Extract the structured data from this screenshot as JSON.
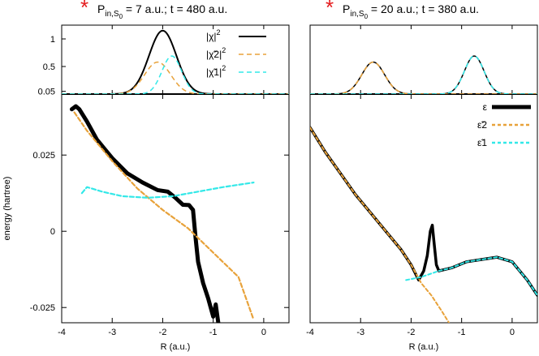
{
  "chart_data": {
    "type": "line",
    "ylabel": "energy (hartree)",
    "panels": [
      {
        "id": "left",
        "title": {
          "star": "*",
          "text": "P",
          "sub": "in,S",
          "subsub": "0",
          "rest": " = 7 a.u.; t = 480 a.u."
        },
        "xlabel": "R (a.u.)",
        "xlim": [
          -4,
          0.5
        ],
        "xticks": [
          "-4",
          "-3",
          "-2",
          "-1",
          "0"
        ],
        "top": {
          "ylim": [
            0,
            1.25
          ],
          "yticks": [
            "0.05",
            "0.5",
            "1"
          ],
          "legend": [
            "|χ|",
            "|χ̃2|",
            "|χ̃1|"
          ],
          "series": [
            {
              "color": "#000000",
              "dash": "",
              "width": 2,
              "gaussians": [
                [
                  1.15,
                  -2.0,
                  0.42
                ]
              ]
            },
            {
              "color": "#e8a23a",
              "dash": "6,4",
              "width": 1.5,
              "gaussians": [
                [
                  0.58,
                  -2.1,
                  0.4
                ]
              ]
            },
            {
              "color": "#33e8e8",
              "dash": "6,4",
              "width": 1.5,
              "gaussians": [
                [
                  0.69,
                  -1.82,
                  0.3
                ]
              ]
            }
          ]
        },
        "bottom": {
          "ylim": [
            -0.03,
            0.045
          ],
          "yticks": [
            "0.025",
            "0",
            "-0.025"
          ],
          "ytick_values": [
            0.025,
            0,
            -0.025
          ],
          "legend": [
            "ε",
            "ε̃2",
            "ε̃1"
          ],
          "series": [
            {
              "name_ref": 0,
              "color": "#000000",
              "dash": "",
              "width": 5,
              "points": [
                [
                  -3.8,
                  0.04
                ],
                [
                  -3.72,
                  0.041
                ],
                [
                  -3.65,
                  0.04
                ],
                [
                  -3.5,
                  0.036
                ],
                [
                  -3.3,
                  0.03
                ],
                [
                  -3.0,
                  0.024
                ],
                [
                  -2.7,
                  0.019
                ],
                [
                  -2.4,
                  0.016
                ],
                [
                  -2.1,
                  0.0135
                ],
                [
                  -1.9,
                  0.013
                ],
                [
                  -1.75,
                  0.011
                ],
                [
                  -1.6,
                  0.0087
                ],
                [
                  -1.48,
                  0.0086
                ],
                [
                  -1.4,
                  0.007
                ],
                [
                  -1.35,
                  -0.002
                ],
                [
                  -1.3,
                  -0.01
                ],
                [
                  -1.2,
                  -0.017
                ],
                [
                  -1.1,
                  -0.022
                ],
                [
                  -1.0,
                  -0.028
                ],
                [
                  -0.95,
                  -0.024
                ],
                [
                  -0.9,
                  -0.03
                ]
              ]
            },
            {
              "name_ref": 1,
              "color": "#e8a23a",
              "dash": "5,3",
              "width": 2.2,
              "points": [
                [
                  -3.75,
                  0.039
                ],
                [
                  -3.5,
                  0.033
                ],
                [
                  -3.0,
                  0.023
                ],
                [
                  -2.5,
                  0.014
                ],
                [
                  -2.0,
                  0.007
                ],
                [
                  -1.5,
                  0.001
                ],
                [
                  -1.0,
                  -0.007
                ],
                [
                  -0.5,
                  -0.015
                ],
                [
                  -0.2,
                  -0.029
                ]
              ]
            },
            {
              "name_ref": 2,
              "color": "#33e8e8",
              "dash": "5,3",
              "width": 2.2,
              "points": [
                [
                  -3.6,
                  0.0125
                ],
                [
                  -3.5,
                  0.0145
                ],
                [
                  -3.2,
                  0.013
                ],
                [
                  -2.8,
                  0.0115
                ],
                [
                  -2.3,
                  0.011
                ],
                [
                  -1.8,
                  0.0115
                ],
                [
                  -1.3,
                  0.013
                ],
                [
                  -0.8,
                  0.0145
                ],
                [
                  -0.4,
                  0.0155
                ],
                [
                  -0.2,
                  0.016
                ]
              ]
            }
          ]
        }
      },
      {
        "id": "right",
        "title": {
          "star": "*",
          "text": "P",
          "sub": "in,S",
          "subsub": "0",
          "rest": " = 20 a.u.; t = 380 a.u."
        },
        "xlabel": "R (a.u.)",
        "xlim": [
          -4,
          0.5
        ],
        "xticks": [
          "-4",
          "-3",
          "-2",
          "-1",
          "0"
        ],
        "top": {
          "ylim": [
            0,
            1.25
          ],
          "yticks": [],
          "legend": [],
          "series": [
            {
              "color": "#000000",
              "dash": "",
              "width": 1.5,
              "gaussians": [
                [
                  0.58,
                  -2.75,
                  0.35
                ],
                [
                  0.69,
                  -0.75,
                  0.3
                ]
              ]
            },
            {
              "color": "#e8a23a",
              "dash": "6,4",
              "width": 1.5,
              "gaussians": [
                [
                  0.58,
                  -2.75,
                  0.35
                ]
              ]
            },
            {
              "color": "#33e8e8",
              "dash": "6,4",
              "width": 1.5,
              "gaussians": [
                [
                  0.69,
                  -0.75,
                  0.3
                ]
              ]
            }
          ]
        },
        "bottom": {
          "ylim": [
            -0.03,
            0.045
          ],
          "yticks": [],
          "legend": [
            "ε",
            "ε̃2",
            "ε̃1"
          ],
          "series": [
            {
              "name_ref": 0,
              "color": "#000000",
              "dash": "",
              "width": 3.5,
              "points": [
                [
                  -4.0,
                  0.034
                ],
                [
                  -3.7,
                  0.026
                ],
                [
                  -3.4,
                  0.019
                ],
                [
                  -3.1,
                  0.012
                ],
                [
                  -2.8,
                  0.006
                ],
                [
                  -2.5,
                  0.0
                ],
                [
                  -2.2,
                  -0.006
                ],
                [
                  -2.0,
                  -0.011
                ],
                [
                  -1.85,
                  -0.016
                ],
                [
                  -1.75,
                  -0.013
                ],
                [
                  -1.68,
                  -0.008
                ],
                [
                  -1.62,
                  0.0
                ],
                [
                  -1.58,
                  0.002
                ],
                [
                  -1.55,
                  -0.003
                ],
                [
                  -1.5,
                  -0.011
                ],
                [
                  -1.45,
                  -0.013
                ],
                [
                  -1.2,
                  -0.012
                ],
                [
                  -0.9,
                  -0.01
                ],
                [
                  -0.5,
                  -0.009
                ],
                [
                  -0.3,
                  -0.0085
                ],
                [
                  0.0,
                  -0.01
                ],
                [
                  0.3,
                  -0.016
                ],
                [
                  0.5,
                  -0.021
                ]
              ]
            },
            {
              "name_ref": 1,
              "color": "#e8a23a",
              "dash": "4,3",
              "width": 2,
              "points": [
                [
                  -4.0,
                  0.034
                ],
                [
                  -3.7,
                  0.026
                ],
                [
                  -3.4,
                  0.019
                ],
                [
                  -3.1,
                  0.012
                ],
                [
                  -2.8,
                  0.006
                ],
                [
                  -2.5,
                  0.0
                ],
                [
                  -2.2,
                  -0.006
                ],
                [
                  -2.0,
                  -0.011
                ],
                [
                  -1.8,
                  -0.017
                ],
                [
                  -1.6,
                  -0.021
                ],
                [
                  -1.4,
                  -0.026
                ],
                [
                  -1.25,
                  -0.03
                ]
              ]
            },
            {
              "name_ref": 2,
              "color": "#33e8e8",
              "dash": "4,3",
              "width": 2,
              "points": [
                [
                  -2.1,
                  -0.016
                ],
                [
                  -1.8,
                  -0.015
                ],
                [
                  -1.45,
                  -0.013
                ],
                [
                  -1.2,
                  -0.012
                ],
                [
                  -0.9,
                  -0.01
                ],
                [
                  -0.5,
                  -0.009
                ],
                [
                  -0.3,
                  -0.0085
                ],
                [
                  0.0,
                  -0.01
                ],
                [
                  0.3,
                  -0.016
                ],
                [
                  0.5,
                  -0.021
                ]
              ]
            }
          ]
        }
      }
    ]
  }
}
